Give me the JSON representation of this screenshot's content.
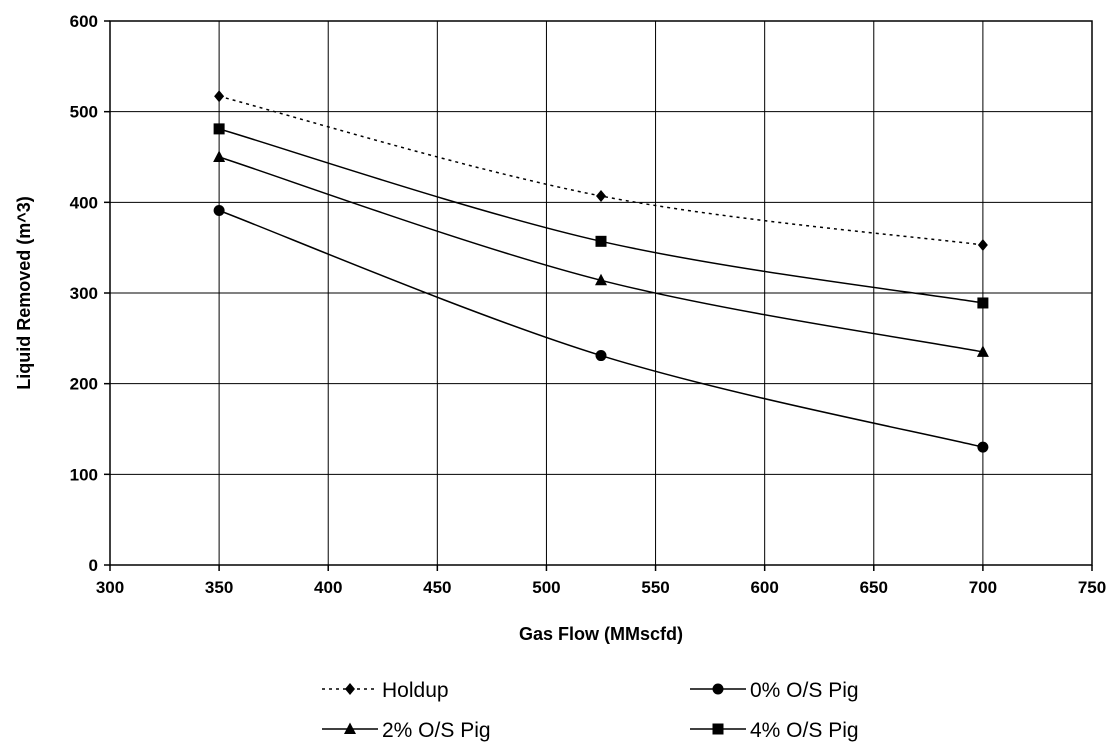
{
  "chart_data": {
    "type": "line",
    "title": "",
    "xlabel": "Gas Flow (MMscfd)",
    "ylabel": "Liquid Removed (m^3)",
    "xlim": [
      300,
      750
    ],
    "ylim": [
      0,
      600
    ],
    "x_ticks": [
      300,
      350,
      400,
      450,
      500,
      550,
      600,
      650,
      700,
      750
    ],
    "y_ticks": [
      0,
      100,
      200,
      300,
      400,
      500,
      600
    ],
    "grid": true,
    "legend_position": "bottom",
    "x": [
      350,
      525,
      700
    ],
    "series": [
      {
        "name": "Holdup",
        "values": [
          517,
          407,
          353
        ],
        "marker": "diamond",
        "line_style": "dotted",
        "color": "#000000"
      },
      {
        "name": "0% O/S Pig",
        "values": [
          391,
          231,
          130
        ],
        "marker": "circle",
        "line_style": "solid",
        "color": "#000000"
      },
      {
        "name": "2% O/S Pig",
        "values": [
          450,
          314,
          235
        ],
        "marker": "triangle",
        "line_style": "solid",
        "color": "#000000"
      },
      {
        "name": "4% O/S Pig",
        "values": [
          481,
          357,
          289
        ],
        "marker": "square",
        "line_style": "solid",
        "color": "#000000"
      }
    ]
  }
}
